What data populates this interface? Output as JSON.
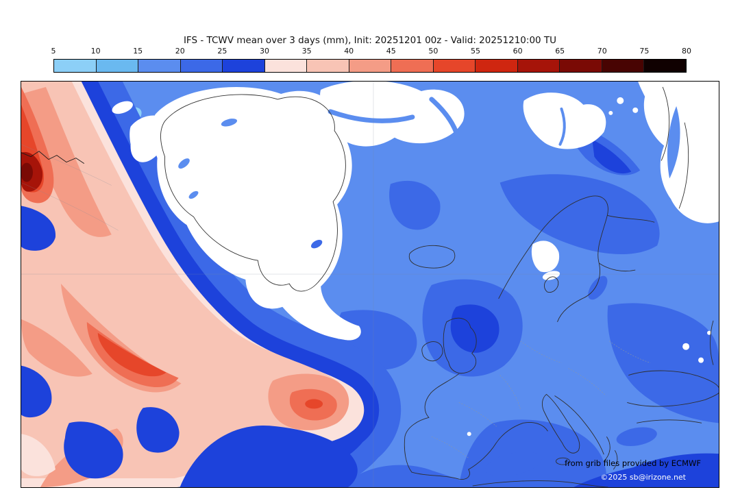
{
  "title": "IFS - TCWV mean over 3 days (mm), Init: 20251201 00z - Valid: 20251210:00 TU",
  "colorbar": {
    "unit": "mm",
    "tick_labels": [
      "5",
      "10",
      "15",
      "20",
      "25",
      "30",
      "35",
      "40",
      "45",
      "50",
      "55",
      "60",
      "65",
      "70",
      "75",
      "80"
    ],
    "segment_colors": [
      "#8CCFF7",
      "#6AB9F0",
      "#5B8DEF",
      "#3C69E7",
      "#1D42DB",
      "#FBE2DC",
      "#F8C4B5",
      "#F49C86",
      "#EF6E54",
      "#E6462A",
      "#CF2610",
      "#A61409",
      "#7A0A05",
      "#480402",
      "#100101"
    ],
    "border_color": "#000000"
  },
  "map": {
    "background_dry_color": "#ffffff",
    "credits": {
      "line1": "from grib files provided by ECMWF",
      "line2": "©2025 sb@irizone.net"
    }
  },
  "page_background": "#ffffff"
}
